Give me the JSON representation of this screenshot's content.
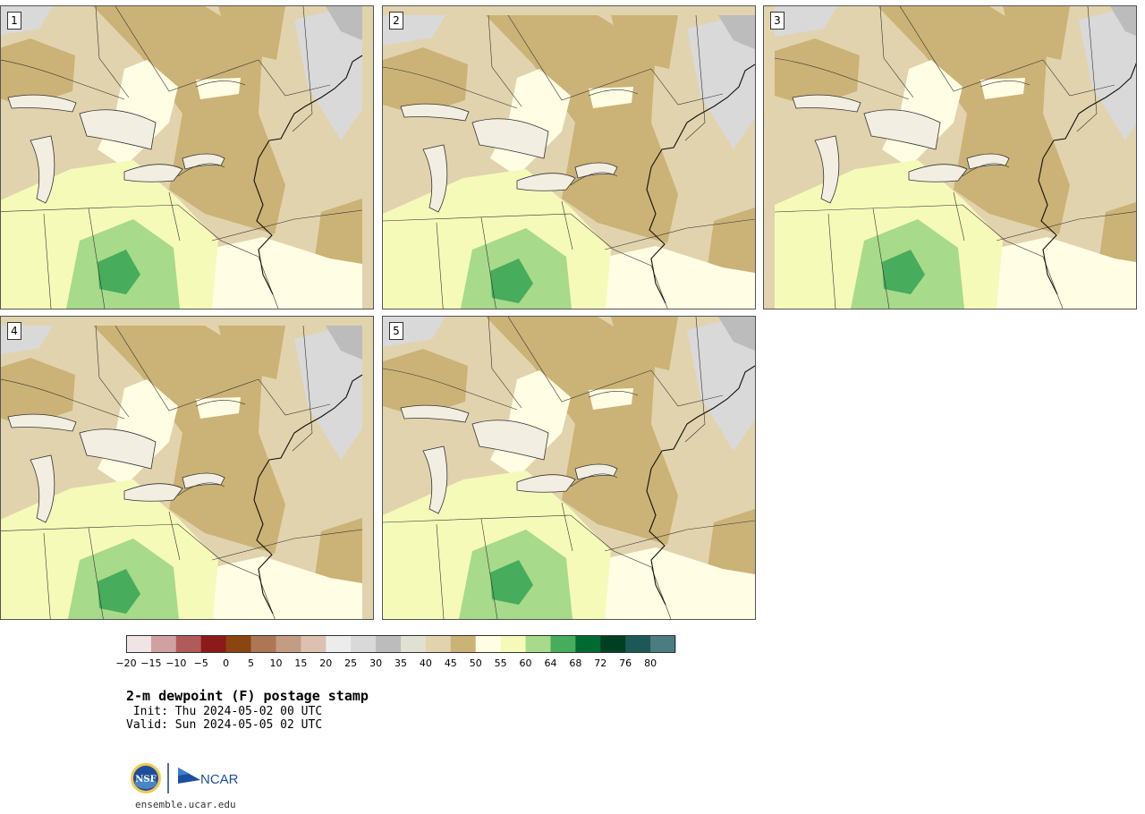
{
  "title": "2-m dewpoint (F) postage stamp",
  "init": " Init: Thu 2024-05-02 00 UTC",
  "valid": "Valid: Sun 2024-05-05 02 UTC",
  "footer_url": "ensemble.ucar.edu",
  "logos": {
    "nsf": "NSF",
    "ncar": "NCAR"
  },
  "members": [
    "1",
    "2",
    "3",
    "4",
    "5"
  ],
  "colorbar": {
    "ticks": [
      "−20",
      "−15",
      "−10",
      "−5",
      "0",
      "5",
      "10",
      "15",
      "20",
      "25",
      "30",
      "35",
      "40",
      "45",
      "50",
      "55",
      "60",
      "64",
      "68",
      "72",
      "76",
      "80"
    ],
    "colors": [
      "#f1e4e4",
      "#d1a1a1",
      "#b05a5a",
      "#8c1a1a",
      "#8a4511",
      "#ad7755",
      "#c39c84",
      "#dcc0b0",
      "#ececec",
      "#d9d9d9",
      "#bcbcbc",
      "#e0e0d3",
      "#e1d3ad",
      "#cbb276",
      "#fffde3",
      "#f6fab9",
      "#a7da8a",
      "#47ac5c",
      "#006a32",
      "#003f22",
      "#1d5858",
      "#4b7d80"
    ]
  }
}
